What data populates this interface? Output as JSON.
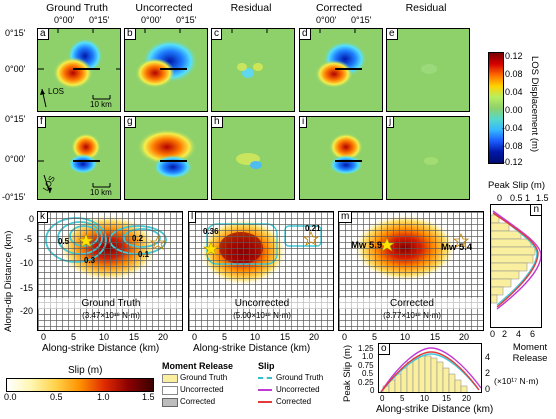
{
  "columns": {
    "c1": "Ground Truth",
    "c2": "Uncorrected",
    "c3": "Residual",
    "c4": "Corrected",
    "c5": "Residual"
  },
  "top_ticks": {
    "t1": "0°00'",
    "t2": "0°15'"
  },
  "lat_ticks": {
    "n15": "0°15'",
    "zero": "0°00'",
    "s15": "-0°15'"
  },
  "panel_labels": [
    "a",
    "b",
    "c",
    "d",
    "e",
    "f",
    "g",
    "h",
    "i",
    "j",
    "k",
    "l",
    "m",
    "n",
    "o"
  ],
  "scale_bar": "10 km",
  "los_label": "LOS",
  "colorbar": {
    "title": "LOS Displacement (m)",
    "ticks": [
      "0.12",
      "0.08",
      "0.04",
      "0.00",
      "-0.04",
      "-0.08",
      "-0.12"
    ]
  },
  "slip_panels": {
    "ylabel": "Along-dip Distance (km)",
    "y_ticks": [
      "0",
      "-5",
      "-10",
      "-15",
      "-20"
    ],
    "xlabel": "Along-strike Distance (km)",
    "x_ticks": [
      "0",
      "5",
      "10",
      "15",
      "20"
    ],
    "k_title": "Ground Truth",
    "k_moment": "(3.47×10¹⁸ N·m)",
    "k_contours": [
      "0.5",
      "0.3",
      "0.2",
      "0.1"
    ],
    "l_title": "Uncorrected",
    "l_moment": "(5.00×10¹⁸ N·m)",
    "l_values": [
      "0.36",
      "0.21"
    ],
    "m_title": "Corrected",
    "m_moment": "(3.77×10¹⁸ N·m)",
    "m_mw1": "Mw 5.9",
    "m_mw2": "Mw 5.4"
  },
  "peak_slip": {
    "title": "Peak Slip (m)",
    "top_ticks": [
      "0",
      "0.5",
      "1",
      "1.5"
    ],
    "bottom_ticks": [
      "0",
      "2",
      "4",
      "6"
    ]
  },
  "moment_release": {
    "ylabel": "Peak Slip (m)",
    "y_ticks": [
      "0",
      "0.25",
      "0.5",
      "0.75",
      "1.0",
      "1.25"
    ],
    "right_ticks": [
      "0",
      "2",
      "4"
    ],
    "right_label": "Moment Release",
    "right_unit": "(×10¹⁷ N·m)",
    "x_ticks": [
      "0",
      "5",
      "10",
      "15",
      "20"
    ],
    "xlabel": "Along-strike Distance (km)"
  },
  "slip_colorbar": {
    "title": "Slip (m)",
    "ticks": [
      "0.0",
      "0.5",
      "1.0",
      "1.5"
    ]
  },
  "legend": {
    "moment_title": "Moment Release",
    "slip_title": "Slip",
    "ground_truth": "Ground Truth",
    "uncorrected": "Uncorrected",
    "corrected": "Corrected",
    "colors": {
      "ground": "#38bdd0",
      "uncorr": "#c23ad6",
      "corr": "#e23b3b"
    }
  }
}
